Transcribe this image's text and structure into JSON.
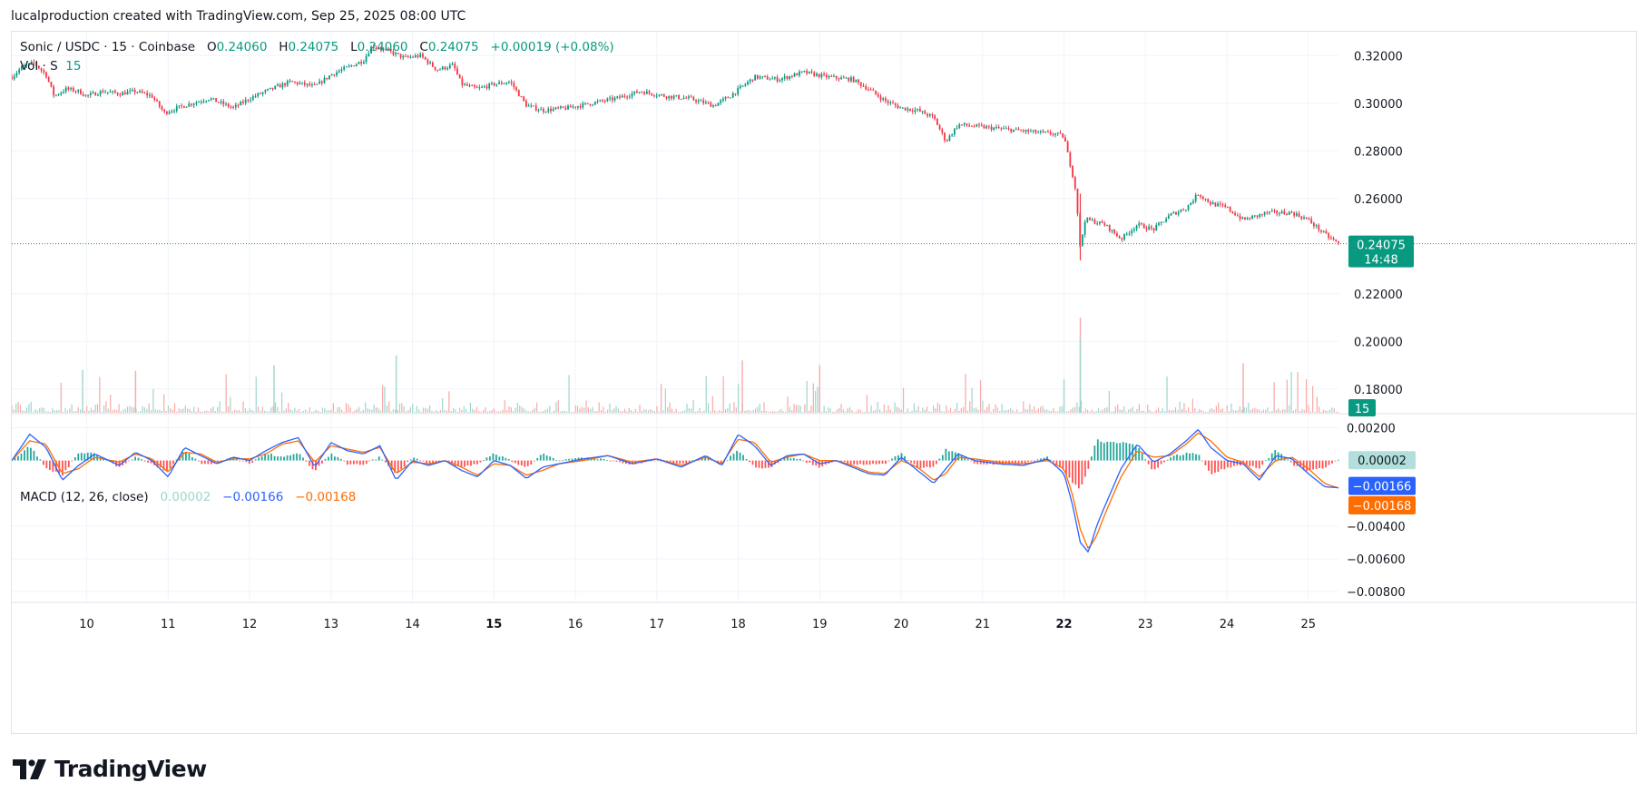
{
  "header": {
    "created_by": "lucalproduction created with TradingView.com, Sep 25, 2025 08:00 UTC"
  },
  "legend": {
    "symbol": "Sonic / USDC · 15 · Coinbase",
    "o_label": "O",
    "o_value": "0.24060",
    "h_label": "H",
    "h_value": "0.24075",
    "l_label": "L",
    "l_value": "0.24060",
    "c_label": "C",
    "c_value": "0.24075",
    "change": "+0.00019 (+0.08%)",
    "vol_label": "Vol · S",
    "vol_value": "15",
    "macd_label": "MACD (12, 26, close)",
    "macd_hist": "0.00002",
    "macd_line": "−0.00166",
    "macd_signal": "−0.00168"
  },
  "badges": {
    "price": "0.24075",
    "countdown": "14:48",
    "volume": "15",
    "macd_hist": "0.00002",
    "macd_line": "−0.00166",
    "macd_signal": "−0.00168"
  },
  "colors": {
    "up": "#089981",
    "down": "#f23645",
    "macd": "#2962ff",
    "signal": "#ff6d00",
    "hist_up": "#26a69a",
    "hist_down": "#ff5252",
    "grid": "#f0f3fa"
  },
  "footer": {
    "brand": "TradingView",
    "logo_icon": "tradingview-logo-icon"
  },
  "chart_data": {
    "type": "candlestick",
    "price_axis": {
      "ticks": [
        0.32,
        0.3,
        0.28,
        0.26,
        0.22,
        0.2,
        0.18
      ],
      "tick_labels": [
        "0.32000",
        "0.30000",
        "0.28000",
        "0.26000",
        "0.22000",
        "0.20000",
        "0.18000"
      ],
      "range": [
        0.17,
        0.33
      ]
    },
    "macd_axis": {
      "ticks": [
        0.002,
        -0.004,
        -0.006,
        -0.008
      ],
      "tick_labels": [
        "0.00200",
        "−0.00400",
        "−0.00600",
        "−0.00800"
      ],
      "range": [
        -0.0086,
        0.0028
      ]
    },
    "x_axis": {
      "labels": [
        "10",
        "11",
        "12",
        "13",
        "14",
        "15",
        "16",
        "17",
        "18",
        "19",
        "20",
        "21",
        "22",
        "23",
        "24",
        "25"
      ],
      "bold": [
        "15",
        "22"
      ],
      "day_range": [
        9.08,
        25.37
      ]
    },
    "price_series": {
      "day": [
        9.08,
        9.2,
        9.35,
        9.5,
        9.6,
        9.75,
        9.9,
        10.0,
        10.2,
        10.4,
        10.6,
        10.8,
        10.95,
        11.2,
        11.5,
        11.8,
        12.0,
        12.2,
        12.5,
        12.8,
        13.0,
        13.2,
        13.4,
        13.5,
        13.7,
        13.9,
        14.1,
        14.3,
        14.5,
        14.6,
        14.8,
        15.0,
        15.2,
        15.4,
        15.6,
        15.9,
        16.2,
        16.5,
        16.8,
        17.1,
        17.4,
        17.7,
        17.9,
        18.2,
        18.5,
        18.8,
        19.1,
        19.4,
        19.6,
        19.8,
        20.0,
        20.2,
        20.4,
        20.55,
        20.7,
        21.0,
        21.3,
        21.6,
        21.9,
        22.0,
        22.05,
        22.1,
        22.15,
        22.2,
        22.25,
        22.3,
        22.5,
        22.7,
        22.9,
        23.1,
        23.3,
        23.5,
        23.65,
        23.8,
        24.0,
        24.2,
        24.5,
        24.8,
        25.0,
        25.2,
        25.37
      ],
      "close": [
        0.311,
        0.315,
        0.317,
        0.312,
        0.303,
        0.306,
        0.305,
        0.303,
        0.305,
        0.304,
        0.305,
        0.303,
        0.296,
        0.299,
        0.302,
        0.298,
        0.302,
        0.305,
        0.309,
        0.307,
        0.312,
        0.315,
        0.318,
        0.324,
        0.322,
        0.319,
        0.32,
        0.314,
        0.316,
        0.308,
        0.306,
        0.308,
        0.309,
        0.299,
        0.297,
        0.298,
        0.3,
        0.302,
        0.305,
        0.303,
        0.302,
        0.299,
        0.303,
        0.311,
        0.31,
        0.313,
        0.311,
        0.31,
        0.306,
        0.301,
        0.298,
        0.297,
        0.294,
        0.284,
        0.291,
        0.29,
        0.289,
        0.288,
        0.287,
        0.286,
        0.278,
        0.271,
        0.262,
        0.238,
        0.251,
        0.251,
        0.249,
        0.243,
        0.249,
        0.247,
        0.253,
        0.256,
        0.262,
        0.258,
        0.256,
        0.251,
        0.254,
        0.254,
        0.251,
        0.245,
        0.241
      ]
    },
    "volume": {
      "spikes": [
        [
          22.2,
          1.0
        ],
        [
          22.2,
          0.78
        ],
        [
          18.05,
          0.55
        ],
        [
          13.8,
          0.6
        ],
        [
          19.0,
          0.5
        ],
        [
          9.95,
          0.45
        ],
        [
          10.6,
          0.44
        ],
        [
          12.3,
          0.5
        ],
        [
          24.2,
          0.52
        ],
        [
          22.0,
          0.35
        ]
      ]
    },
    "macd": {
      "day": [
        9.08,
        9.3,
        9.5,
        9.7,
        9.9,
        10.1,
        10.4,
        10.6,
        10.8,
        11.0,
        11.2,
        11.4,
        11.6,
        11.8,
        12.0,
        12.2,
        12.4,
        12.6,
        12.8,
        13.0,
        13.2,
        13.4,
        13.6,
        13.8,
        14.0,
        14.2,
        14.4,
        14.6,
        14.8,
        15.0,
        15.2,
        15.4,
        15.6,
        15.8,
        16.1,
        16.4,
        16.7,
        17.0,
        17.3,
        17.6,
        17.8,
        18.0,
        18.2,
        18.4,
        18.6,
        18.8,
        19.0,
        19.2,
        19.4,
        19.6,
        19.8,
        20.0,
        20.2,
        20.4,
        20.55,
        20.7,
        20.9,
        21.2,
        21.5,
        21.8,
        22.0,
        22.1,
        22.2,
        22.3,
        22.4,
        22.5,
        22.7,
        22.9,
        23.1,
        23.3,
        23.5,
        23.65,
        23.8,
        24.0,
        24.2,
        24.4,
        24.6,
        24.8,
        25.0,
        25.2,
        25.37
      ],
      "macd_line": [
        0.0,
        0.0016,
        0.0008,
        -0.0012,
        -0.0003,
        0.0004,
        -0.0003,
        0.0005,
        0.0,
        -0.001,
        0.0008,
        0.0003,
        -0.0002,
        0.0002,
        0.0,
        0.0006,
        0.0011,
        0.0014,
        -0.0004,
        0.0011,
        0.0006,
        0.0004,
        0.0009,
        -0.0012,
        0.0,
        -0.0003,
        0.0,
        -0.0006,
        -0.001,
        0.0,
        -0.0003,
        -0.0011,
        -0.0004,
        -0.0002,
        0.0001,
        0.0003,
        -0.0002,
        0.0001,
        -0.0004,
        0.0003,
        -0.0003,
        0.0016,
        0.0009,
        -0.0003,
        0.0003,
        0.0004,
        -0.0002,
        0.0,
        -0.0004,
        -0.0008,
        -0.0009,
        0.0002,
        -0.0006,
        -0.0014,
        -0.0005,
        0.0004,
        0.0,
        -0.0002,
        -0.0003,
        0.0001,
        -0.0008,
        -0.0026,
        -0.005,
        -0.0056,
        -0.004,
        -0.0028,
        -0.0005,
        0.001,
        -0.0001,
        0.0004,
        0.0012,
        0.0019,
        0.0008,
        0.0,
        -0.0002,
        -0.0012,
        0.0003,
        0.0001,
        -0.0008,
        -0.0016,
        -0.00166
      ],
      "signal_line": [
        0.0,
        0.0012,
        0.001,
        -0.0008,
        -0.0005,
        0.0002,
        -0.0001,
        0.0004,
        0.0001,
        -0.0007,
        0.0005,
        0.0004,
        -0.0001,
        0.0001,
        0.0001,
        0.0004,
        0.001,
        0.0012,
        -0.0001,
        0.0009,
        0.0007,
        0.0005,
        0.0008,
        -0.0008,
        -0.0001,
        -0.0002,
        0.0,
        -0.0004,
        -0.0009,
        -0.0002,
        -0.0003,
        -0.0009,
        -0.0006,
        -0.0002,
        0.0,
        0.0003,
        -0.0001,
        0.0001,
        -0.0003,
        0.0002,
        -0.0002,
        0.0013,
        0.0011,
        -0.0001,
        0.0002,
        0.0004,
        0.0,
        0.0,
        -0.0003,
        -0.0007,
        -0.0008,
        0.0,
        -0.0004,
        -0.0012,
        -0.0008,
        0.0002,
        0.0001,
        -0.0001,
        -0.0002,
        0.0,
        -0.0005,
        -0.002,
        -0.0042,
        -0.0054,
        -0.0046,
        -0.0033,
        -0.001,
        0.0006,
        0.0002,
        0.0003,
        0.001,
        0.0017,
        0.0012,
        0.0002,
        -0.0001,
        -0.001,
        0.0,
        0.0002,
        -0.0005,
        -0.0014,
        -0.00168
      ]
    }
  }
}
